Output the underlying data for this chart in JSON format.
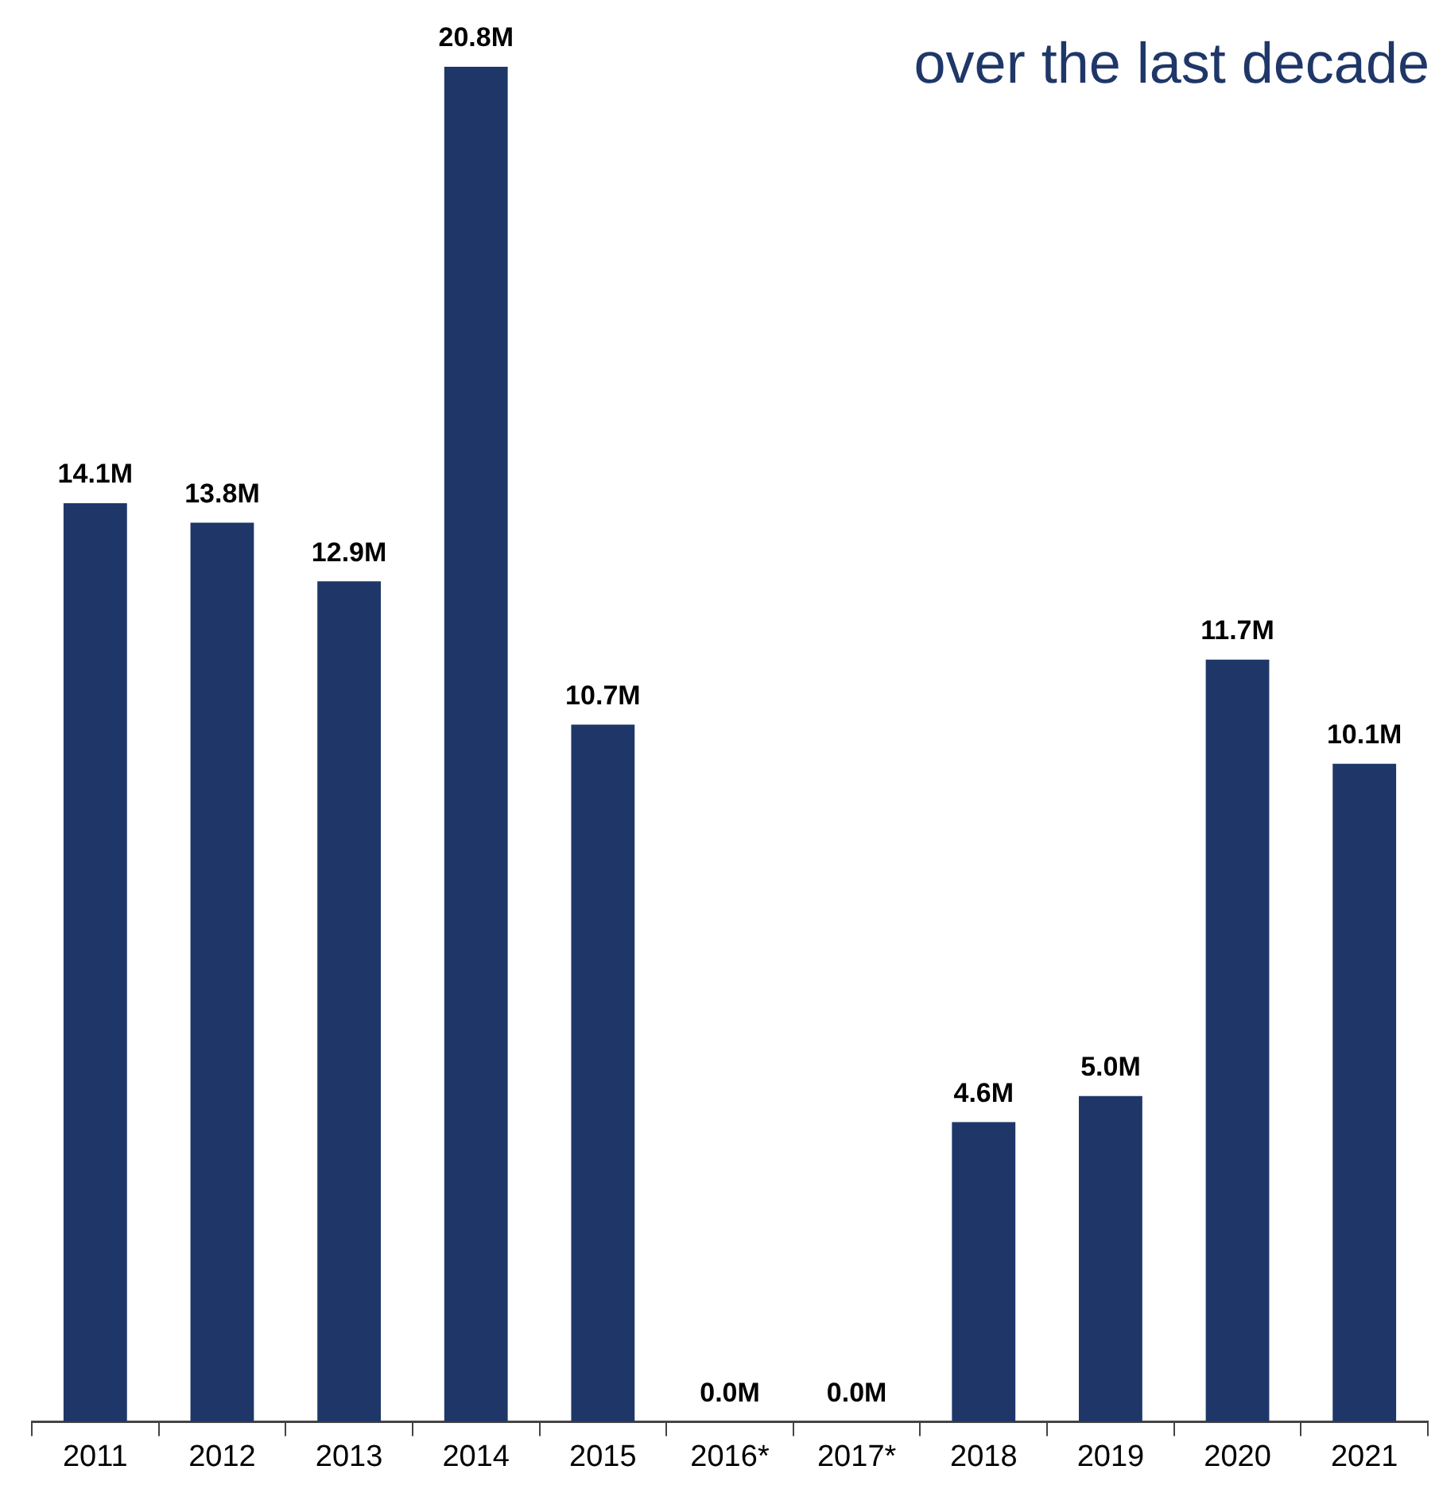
{
  "chart_data": {
    "type": "bar",
    "title": "over the last decade",
    "categories": [
      "2011",
      "2012",
      "2013",
      "2014",
      "2015",
      "2016*",
      "2017*",
      "2018",
      "2019",
      "2020",
      "2021"
    ],
    "values": [
      14.1,
      13.8,
      12.9,
      20.8,
      10.7,
      0.0,
      0.0,
      4.6,
      5.0,
      11.7,
      10.1
    ],
    "value_labels": [
      "14.1M",
      "13.8M",
      "12.9M",
      "20.8M",
      "10.7M",
      "0.0M",
      "0.0M",
      "4.6M",
      "5.0M",
      "11.7M",
      "10.1M"
    ],
    "color": "#1f3768",
    "grid": false,
    "legend": false,
    "tick_labels": "x"
  }
}
